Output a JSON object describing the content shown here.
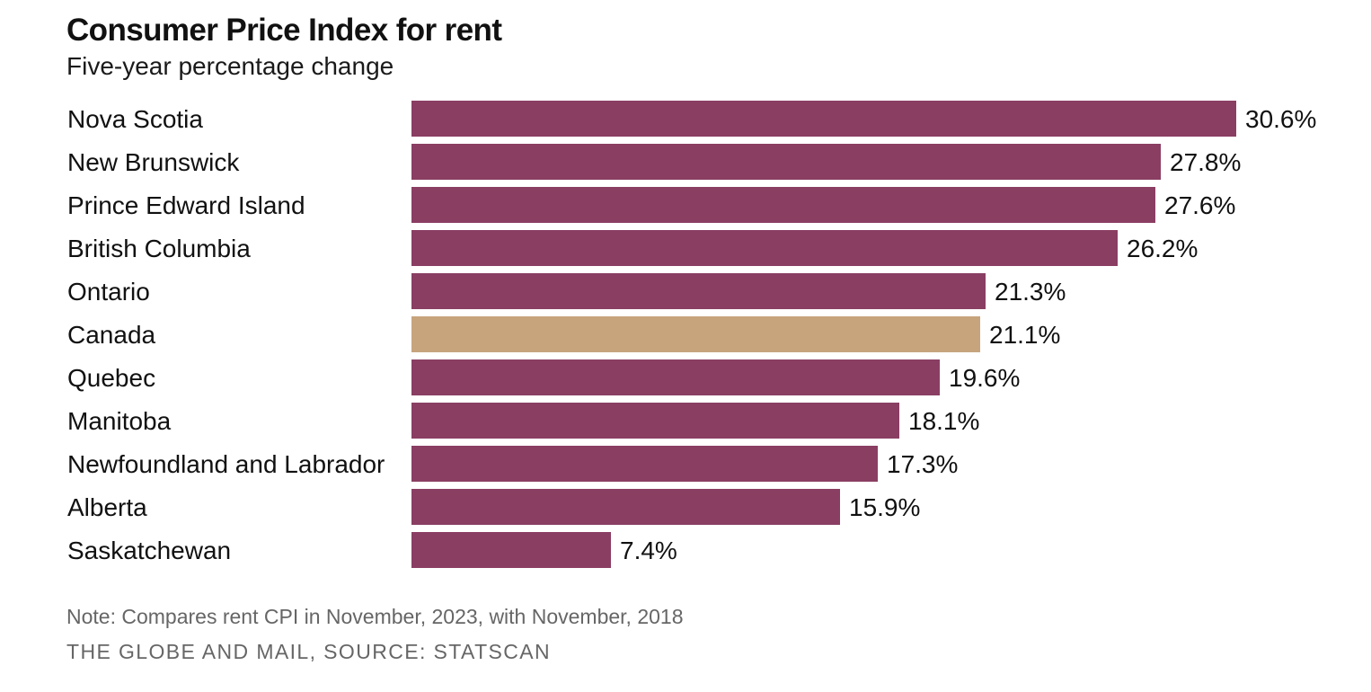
{
  "header": {
    "title": "Consumer Price Index for rent",
    "subtitle": "Five-year percentage change"
  },
  "footer": {
    "note": "Note: Compares rent CPI in November, 2023, with November, 2018",
    "source": "THE GLOBE AND MAIL, SOURCE: STATSCAN"
  },
  "colors": {
    "bar": "#8a3e62",
    "highlight": "#c7a47c",
    "text": "#111111",
    "muted": "#666666"
  },
  "chart_data": {
    "type": "bar",
    "orientation": "horizontal",
    "title": "Consumer Price Index for rent",
    "subtitle": "Five-year percentage change",
    "categories": [
      "Nova Scotia",
      "New Brunswick",
      "Prince Edward Island",
      "British Columbia",
      "Ontario",
      "Canada",
      "Quebec",
      "Manitoba",
      "Newfoundland and Labrador",
      "Alberta",
      "Saskatchewan"
    ],
    "values": [
      30.6,
      27.8,
      27.6,
      26.2,
      21.3,
      21.1,
      19.6,
      18.1,
      17.3,
      15.9,
      7.4
    ],
    "labels": [
      "30.6%",
      "27.8%",
      "27.6%",
      "26.2%",
      "21.3%",
      "21.1%",
      "19.6%",
      "18.1%",
      "17.3%",
      "15.9%",
      "7.4%"
    ],
    "highlighted": [
      "Canada"
    ],
    "xlim": [
      0,
      30.6
    ],
    "grid": false,
    "legend": "none"
  }
}
